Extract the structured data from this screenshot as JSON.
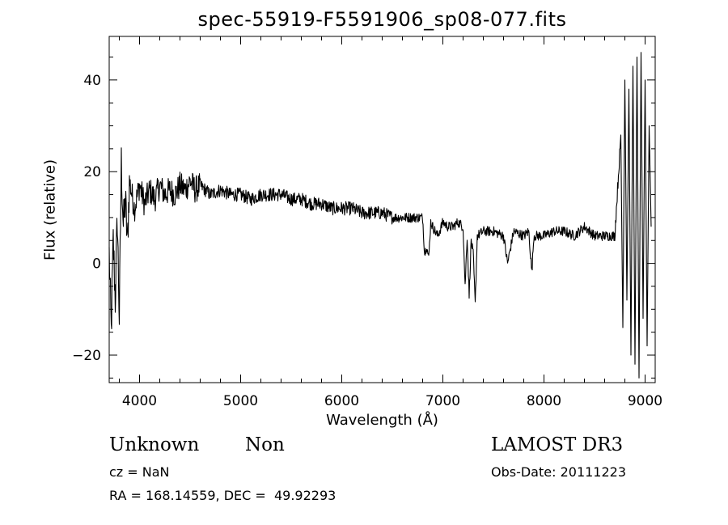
{
  "chart_data": {
    "type": "line",
    "title": "spec-55919-F5591906_sp08-077.fits",
    "xlabel": "Wavelength (Å)",
    "ylabel": "Flux (relative)",
    "xlim": [
      3700,
      9100
    ],
    "ylim": [
      -26,
      49.5
    ],
    "xticks": [
      4000,
      5000,
      6000,
      7000,
      8000,
      9000
    ],
    "yticks": [
      -20,
      0,
      20,
      40
    ],
    "grid": false,
    "legend": "none",
    "line_color": "#000000",
    "series": [
      {
        "x": [
          3700,
          3720,
          3740,
          3760,
          3780,
          3800,
          3820,
          3840,
          3860,
          3880,
          3900,
          3950,
          4000,
          4050,
          4100,
          4150,
          4200,
          4250,
          4300,
          4350,
          4400,
          4450,
          4500,
          4550,
          4600,
          4700,
          4800,
          4900,
          5000,
          5100,
          5200,
          5300,
          5400,
          5500,
          5600,
          5700,
          5800,
          5900,
          6000,
          6100,
          6200,
          6300,
          6400,
          6500,
          6600,
          6700,
          6800,
          6820,
          6840,
          6860,
          6880,
          6900,
          6950,
          7000,
          7050,
          7100,
          7150,
          7200,
          7220,
          7240,
          7260,
          7280,
          7300,
          7320,
          7340,
          7400,
          7500,
          7600,
          7640,
          7700,
          7800,
          7850,
          7880,
          7900,
          8000,
          8100,
          8200,
          8300,
          8400,
          8500,
          8600,
          8700,
          8760,
          8780,
          8800,
          8820,
          8840,
          8860,
          8880,
          8900,
          8920,
          8940,
          8960,
          8980,
          9000,
          9020,
          9040,
          9060
        ],
        "y": [
          2,
          -15,
          5,
          -8,
          10,
          -12,
          22,
          8,
          14,
          4,
          18,
          12,
          17,
          13,
          16,
          14,
          17,
          15,
          16,
          15,
          17,
          16,
          18,
          16,
          17,
          15,
          16,
          15,
          15,
          14,
          15,
          15,
          15,
          14,
          14,
          13,
          13,
          12,
          12,
          12,
          11,
          11,
          11,
          10,
          10,
          10,
          10,
          2,
          4,
          1,
          9,
          8,
          6,
          9,
          8,
          8,
          9,
          8,
          -5,
          6,
          -7,
          5,
          2,
          -9,
          6,
          7,
          7,
          6,
          0,
          7,
          6,
          7,
          -2,
          6,
          6,
          7,
          7,
          6,
          8,
          6,
          6,
          6,
          28,
          -14,
          40,
          -8,
          38,
          -20,
          43,
          -22,
          45,
          -25,
          46,
          -12,
          40,
          -18,
          30,
          8
        ]
      }
    ]
  },
  "info": {
    "class": "Unknown",
    "subclass": "Non",
    "cz": "cz = NaN",
    "radec": "RA = 168.14559, DEC =  49.92293",
    "survey": "LAMOST DR3",
    "obsdate": "Obs-Date: 20111223"
  }
}
